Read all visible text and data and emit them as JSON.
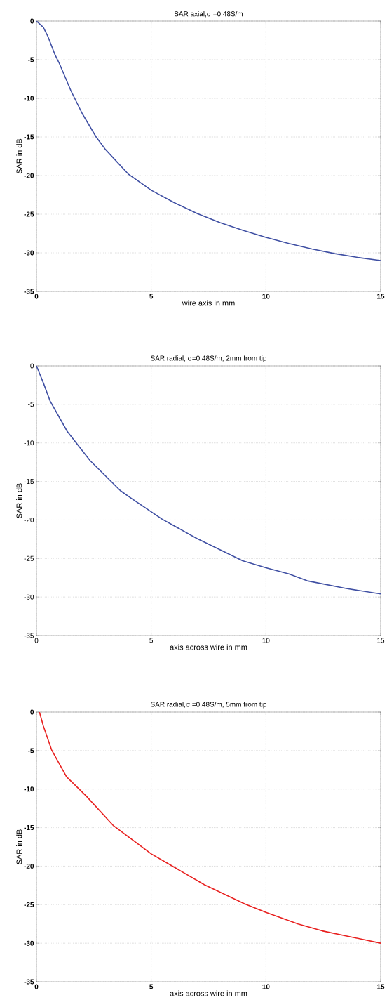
{
  "chart_data": [
    {
      "type": "line",
      "title": "SAR axial,σ =0.48S/m",
      "xlabel": "wire axis in mm",
      "ylabel": "SAR in dB",
      "x": [
        0,
        0.3,
        0.5,
        0.8,
        1,
        1.5,
        2,
        2.6,
        3,
        4,
        5,
        6,
        7,
        8,
        9,
        10,
        11,
        12,
        13,
        14,
        15
      ],
      "series": [
        {
          "color": "#3f4fa3",
          "values": [
            0,
            -0.8,
            -2,
            -4.3,
            -5.5,
            -9,
            -12,
            -15,
            -16.6,
            -19.8,
            -21.9,
            -23.5,
            -24.9,
            -26.1,
            -27.1,
            -28,
            -28.8,
            -29.5,
            -30.1,
            -30.6,
            -31
          ]
        }
      ],
      "xlim": [
        0,
        15
      ],
      "ylim": [
        -35,
        0
      ],
      "xticks": [
        0,
        5,
        10,
        15
      ],
      "yticks": [
        -35,
        -30,
        -25,
        -20,
        -15,
        -10,
        -5,
        0
      ],
      "grid": true
    },
    {
      "type": "line",
      "title": "SAR radial, σ=0.48S/m, 2mm from tip",
      "xlabel": "axis across wire in mm",
      "ylabel": "SAR in dB",
      "x": [
        0,
        0.3,
        0.6,
        1.34,
        2.34,
        3.66,
        4.19,
        5.48,
        6.99,
        8.98,
        10,
        11,
        11.8,
        13.5,
        15
      ],
      "series": [
        {
          "color": "#3f4fa3",
          "values": [
            0,
            -2.2,
            -4.6,
            -8.5,
            -12.3,
            -16.2,
            -17.3,
            -19.9,
            -22.4,
            -25.3,
            -26.2,
            -27,
            -27.9,
            -28.9,
            -29.6
          ]
        }
      ],
      "xlim": [
        0,
        15
      ],
      "ylim": [
        -35,
        0
      ],
      "xticks": [
        0,
        5,
        10,
        15
      ],
      "yticks": [
        -35,
        -30,
        -25,
        -20,
        -15,
        -10,
        -5,
        0
      ],
      "grid": true
    },
    {
      "type": "line",
      "title": "SAR radial,σ =0.48S/m, 5mm from tip",
      "xlabel": "axis across wire in mm",
      "ylabel": "SAR in dB",
      "x": [
        0.13,
        0.3,
        0.66,
        1.31,
        2.17,
        3.34,
        5,
        5.81,
        7.31,
        9.08,
        10,
        11.4,
        12.45,
        15
      ],
      "series": [
        {
          "color": "#e8201f",
          "values": [
            0,
            -1.8,
            -4.9,
            -8.4,
            -10.9,
            -14.7,
            -18.4,
            -19.8,
            -22.4,
            -24.9,
            -26,
            -27.5,
            -28.4,
            -30
          ]
        }
      ],
      "xlim": [
        0,
        15
      ],
      "ylim": [
        -35,
        0
      ],
      "xticks": [
        0,
        5,
        10,
        15
      ],
      "yticks": [
        -35,
        -30,
        -25,
        -20,
        -15,
        -10,
        -5,
        0
      ],
      "grid": true
    }
  ]
}
